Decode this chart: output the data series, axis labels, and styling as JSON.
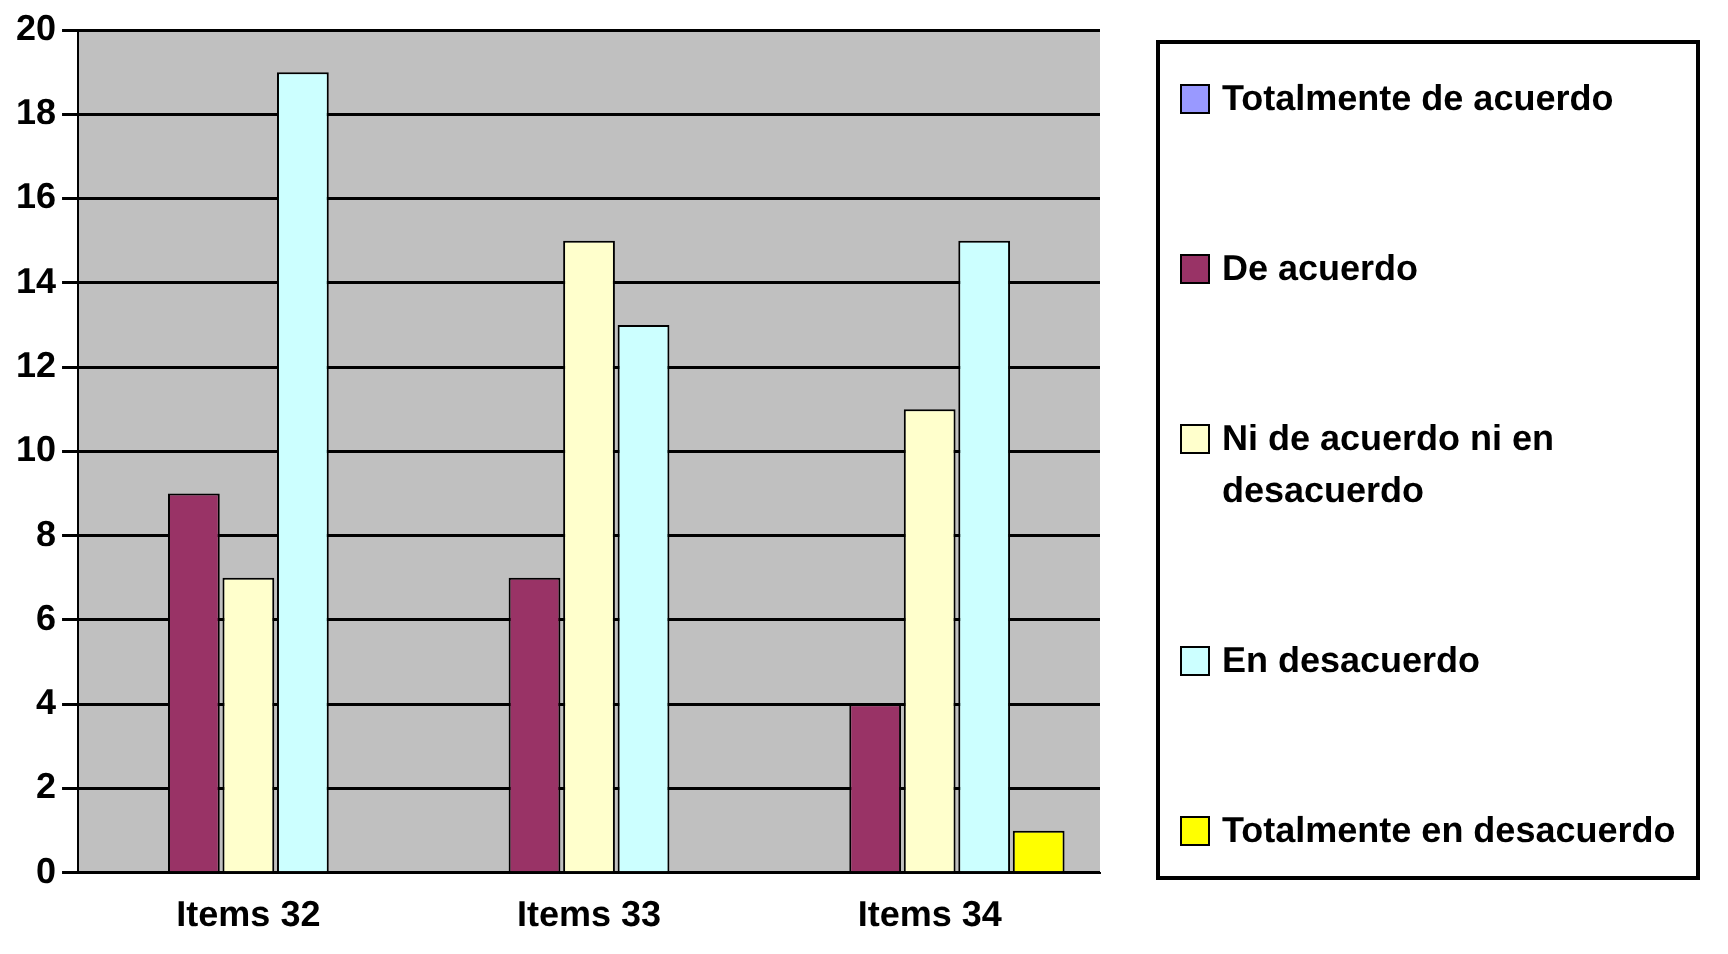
{
  "chart_data": {
    "type": "bar",
    "categories": [
      "Items 32",
      "Items 33",
      "Items 34"
    ],
    "series": [
      {
        "name": "Totalmente de acuerdo",
        "color": "#9999ff",
        "values": [
          0,
          0,
          0
        ]
      },
      {
        "name": "De acuerdo",
        "color": "#993366",
        "values": [
          9,
          7,
          4
        ]
      },
      {
        "name": "Ni de acuerdo ni en desacuerdo",
        "color": "#ffffcc",
        "values": [
          7,
          15,
          11
        ]
      },
      {
        "name": "En desacuerdo",
        "color": "#ccffff",
        "values": [
          19,
          13,
          15
        ]
      },
      {
        "name": "Totalmente en desacuerdo",
        "color": "#ffff00",
        "values": [
          0,
          0,
          1
        ]
      }
    ],
    "ylim": [
      0,
      20
    ],
    "yticks": [
      0,
      2,
      4,
      6,
      8,
      10,
      12,
      14,
      16,
      18,
      20
    ],
    "grid": "y",
    "legend": "right"
  }
}
